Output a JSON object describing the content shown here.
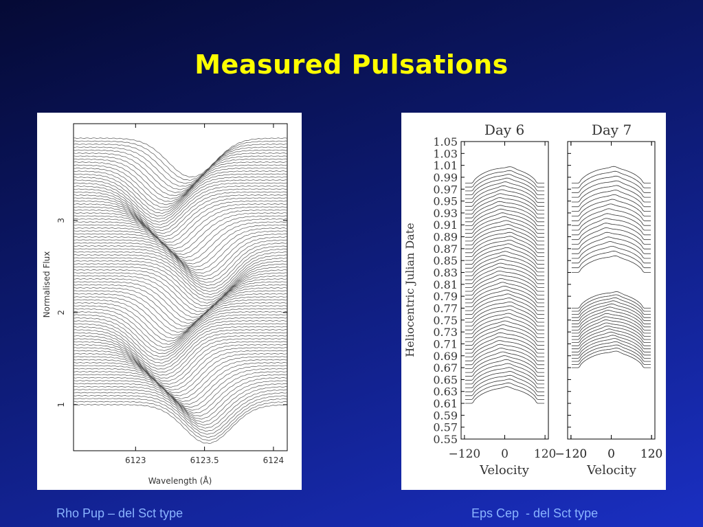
{
  "slide": {
    "title": "Measured Pulsations",
    "caption_left": "Rho Pup – del Sct type",
    "caption_right": "Eps Cep  - del Sct type"
  },
  "colors": {
    "background": "#0d1a72",
    "title": "#ffff00",
    "caption": "#8ab4ff",
    "line": "#444444"
  },
  "chart_data": [
    {
      "type": "line",
      "subtype": "stacked-line-profiles",
      "title": "",
      "xlabel": "Wavelength (Å)",
      "ylabel": "Normalised Flux",
      "xlim": [
        6122.55,
        6124.1
      ],
      "ylim": [
        0.5,
        4.05
      ],
      "xticks": [
        6123,
        6123.5,
        6124
      ],
      "xtick_labels": [
        "6123",
        "6123.5",
        "6124"
      ],
      "yticks": [
        1,
        2,
        3
      ],
      "ytick_labels": [
        "1",
        "2",
        "3"
      ],
      "grid": false,
      "series_count": 90,
      "continuum_start": 1.0,
      "continuum_step": 0.0325,
      "line_center": 6123.35,
      "line_depth": 0.42
    },
    {
      "type": "line",
      "subtype": "stacked-line-profiles",
      "panels": [
        {
          "title": "Day 6",
          "xlabel": "Velocity",
          "xlim": [
            -130,
            130
          ],
          "xticks": [
            -120,
            0,
            120
          ],
          "xtick_labels": [
            "−120",
            "0",
            "120"
          ],
          "y_range": [
            0.61,
            1.0
          ],
          "profile_count": 58
        },
        {
          "title": "Day 7",
          "xlabel": "Velocity",
          "xlim": [
            -130,
            130
          ],
          "xticks": [
            -120,
            0,
            120
          ],
          "xtick_labels": [
            "−120",
            "0",
            "120"
          ],
          "y_segments": [
            [
              0.67,
              0.79
            ],
            [
              0.83,
              1.0
            ]
          ],
          "profile_count": 40
        }
      ],
      "ylabel": "Heliocentric  Julian Date",
      "ylim": [
        0.55,
        1.05
      ],
      "yticks": [
        0.55,
        0.57,
        0.59,
        0.61,
        0.63,
        0.65,
        0.67,
        0.69,
        0.71,
        0.73,
        0.75,
        0.77,
        0.79,
        0.81,
        0.83,
        0.85,
        0.87,
        0.89,
        0.91,
        0.93,
        0.95,
        0.97,
        0.99,
        1.01,
        1.03,
        1.05
      ],
      "ytick_labels": [
        "0.55",
        "0.57",
        "0.59",
        "0.61",
        "0.63",
        "0.65",
        "0.67",
        "0.69",
        "0.71",
        "0.73",
        "0.75",
        "0.77",
        "0.79",
        "0.81",
        "0.83",
        "0.85",
        "0.87",
        "0.89",
        "0.91",
        "0.93",
        "0.95",
        "0.97",
        "0.99",
        "1.01",
        "1.03",
        "1.05"
      ],
      "grid": false
    }
  ]
}
